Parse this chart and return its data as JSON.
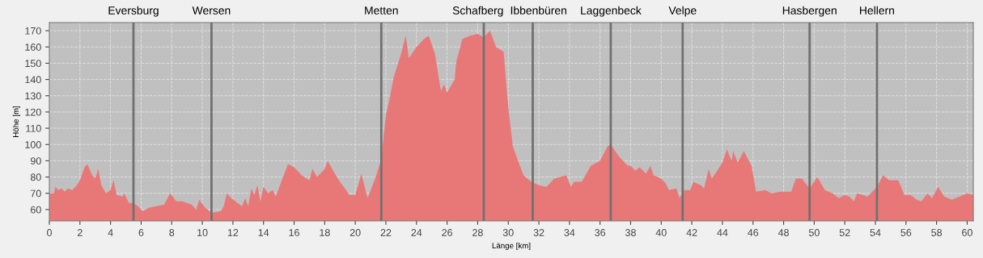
{
  "chart_data": {
    "type": "area",
    "xlabel": "Länge [km]",
    "ylabel": "Höhe [m]",
    "x": [
      0,
      0.3,
      0.4,
      0.6,
      0.8,
      1.0,
      1.2,
      1.5,
      1.8,
      2.0,
      2.3,
      2.5,
      2.8,
      3.0,
      3.2,
      3.4,
      3.7,
      4.0,
      4.2,
      4.4,
      4.8,
      4.9,
      5.2,
      5.5,
      5.8,
      6.1,
      6.5,
      7.0,
      7.5,
      7.9,
      8.3,
      8.7,
      9.3,
      9.6,
      9.8,
      10.2,
      10.6,
      11.2,
      11.4,
      11.6,
      11.9,
      12.3,
      12.6,
      12.8,
      13.0,
      13.2,
      13.4,
      13.6,
      13.8,
      14.0,
      14.3,
      14.6,
      14.8,
      15.2,
      15.6,
      16.0,
      16.5,
      17.0,
      17.2,
      17.5,
      18.0,
      18.2,
      18.6,
      19.0,
      19.4,
      19.6,
      20.0,
      20.4,
      20.8,
      21.3,
      21.7,
      22.0,
      22.3,
      22.5,
      23.0,
      23.3,
      23.5,
      24.0,
      24.5,
      24.8,
      25.2,
      25.6,
      25.8,
      26.0,
      26.5,
      26.6,
      27.0,
      27.5,
      28.0,
      28.4,
      28.8,
      29.2,
      29.7,
      30.0,
      30.3,
      30.6,
      31.0,
      31.5,
      32.0,
      32.5,
      33.0,
      33.8,
      34.1,
      34.3,
      34.8,
      35.4,
      36.0,
      36.5,
      36.7,
      37.2,
      37.8,
      38.0,
      38.3,
      38.6,
      39.0,
      39.3,
      39.5,
      40.0,
      40.3,
      40.5,
      41.0,
      41.2,
      41.5,
      41.9,
      42.1,
      42.6,
      42.8,
      43.1,
      43.3,
      43.6,
      44.0,
      44.3,
      44.6,
      44.7,
      45.0,
      45.4,
      45.9,
      46.2,
      46.8,
      47.2,
      47.8,
      48.5,
      48.8,
      49.2,
      49.7,
      50.2,
      50.7,
      51.2,
      51.6,
      52.0,
      52.3,
      52.6,
      52.8,
      53.5,
      54.1,
      54.5,
      54.9,
      55.5,
      55.9,
      56.3,
      56.7,
      57.0,
      57.4,
      57.7,
      58.1,
      58.5,
      59.0,
      59.5,
      60.0,
      60.4
    ],
    "series": [
      {
        "color": "#e87878",
        "values": [
          70,
          70,
          74,
          72,
          73,
          71,
          73,
          72,
          75,
          78,
          86,
          88,
          81,
          79,
          85,
          75,
          70,
          72,
          78,
          69,
          68,
          70,
          64,
          64,
          62,
          59,
          61,
          62,
          63,
          70,
          65,
          65,
          63,
          60,
          66,
          61,
          58,
          59,
          62,
          70,
          67,
          64,
          62,
          67,
          62,
          73,
          69,
          75,
          65,
          74,
          70,
          72,
          68,
          78,
          88,
          86,
          81,
          78,
          85,
          80,
          85,
          90,
          83,
          77,
          72,
          69,
          69,
          82,
          67,
          79,
          91,
          118,
          131,
          141,
          156,
          167,
          153,
          160,
          165,
          167,
          156,
          133,
          137,
          132,
          140,
          151,
          165,
          167,
          168,
          166,
          170,
          160,
          157,
          123,
          99,
          91,
          81,
          77,
          75,
          74,
          79,
          81,
          74,
          77,
          77,
          87,
          90,
          99,
          100,
          93,
          87,
          87,
          84,
          86,
          82,
          87,
          81,
          79,
          76,
          72,
          73,
          67,
          72,
          72,
          77,
          75,
          73,
          85,
          79,
          83,
          89,
          97,
          90,
          96,
          89,
          96,
          87,
          71,
          72,
          70,
          71,
          71,
          79,
          79,
          73,
          80,
          72,
          70,
          67,
          69,
          68,
          65,
          70,
          68,
          74,
          81,
          78,
          78,
          69,
          69,
          66,
          65,
          70,
          67,
          74,
          68,
          66,
          68,
          70,
          69
        ]
      }
    ],
    "xlim": [
      0,
      60.4
    ],
    "ylim": [
      53,
      175
    ],
    "xticks": [
      0,
      2,
      4,
      6,
      8,
      10,
      12,
      14,
      16,
      18,
      20,
      22,
      24,
      26,
      28,
      30,
      32,
      34,
      36,
      38,
      40,
      42,
      44,
      46,
      48,
      50,
      52,
      54,
      56,
      58,
      60
    ],
    "yticks": [
      60,
      70,
      80,
      90,
      100,
      110,
      120,
      130,
      140,
      150,
      160,
      170
    ],
    "grid": true,
    "ref_lines": [
      {
        "axis": "x",
        "value": 5.5,
        "label": "Eversburg",
        "color": "#707070"
      },
      {
        "axis": "x",
        "value": 10.6,
        "label": "Wersen",
        "color": "#707070"
      },
      {
        "axis": "x",
        "value": 21.7,
        "label": "Metten",
        "color": "#707070"
      },
      {
        "axis": "x",
        "value": 28.4,
        "label": "Schafberg",
        "color": "#707070"
      },
      {
        "axis": "x",
        "value": 31.6,
        "label": "Ibbenbüren",
        "color": "#707070"
      },
      {
        "axis": "x",
        "value": 36.7,
        "label": "Laggenbeck",
        "color": "#707070"
      },
      {
        "axis": "x",
        "value": 41.4,
        "label": "Velpe",
        "color": "#707070"
      },
      {
        "axis": "x",
        "value": 49.7,
        "label": "Hasbergen",
        "color": "#707070"
      },
      {
        "axis": "x",
        "value": 54.1,
        "label": "Hellern",
        "color": "#707070"
      }
    ]
  }
}
